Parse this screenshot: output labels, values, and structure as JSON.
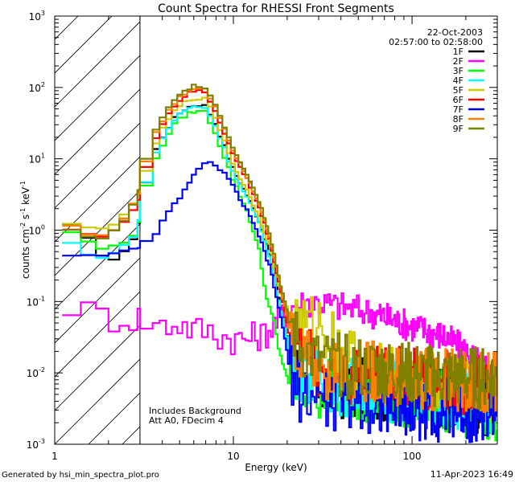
{
  "chart_data": {
    "type": "line",
    "title": "Count Spectra for RHESSI Front Segments",
    "xlabel": "Energy (keV)",
    "ylabel": "counts cm",
    "ylabel_parts": {
      "base": "counts cm",
      "exp1": "-2",
      "mid1": " s",
      "exp2": "-1",
      "mid2": " keV",
      "exp3": "-1"
    },
    "x_scale": "log",
    "y_scale": "log",
    "xlim": [
      1,
      300
    ],
    "ylim": [
      0.001,
      1000
    ],
    "x_ticks": [
      {
        "value": 1,
        "label": "1"
      },
      {
        "value": 10,
        "label": "10"
      },
      {
        "value": 100,
        "label": "100"
      }
    ],
    "y_ticks": [
      {
        "value": 0.001,
        "base": "10",
        "exp": "-3"
      },
      {
        "value": 0.01,
        "base": "10",
        "exp": "-2"
      },
      {
        "value": 0.1,
        "base": "10",
        "exp": "-1"
      },
      {
        "value": 1,
        "base": "10",
        "exp": "0"
      },
      {
        "value": 10,
        "base": "10",
        "exp": "1"
      },
      {
        "value": 100,
        "base": "10",
        "exp": "2"
      },
      {
        "value": 1000,
        "base": "10",
        "exp": "3"
      }
    ],
    "excluded_region": {
      "x": [
        1,
        3
      ],
      "style": "hatched"
    },
    "date": "22-Oct-2003",
    "time_range": "02:57:00 to 02:58:00",
    "annotations": [
      "Includes Background",
      "Att A0, FDecim 4"
    ],
    "legend_position": "top-right",
    "series": [
      {
        "name": "1F",
        "color": "#000000",
        "key": [
          [
            1.2,
            1.25
          ],
          [
            1.5,
            0.8
          ],
          [
            1.8,
            0.5
          ],
          [
            2.0,
            0.35
          ],
          [
            2.5,
            0.5
          ],
          [
            2.9,
            1.0
          ],
          [
            3.2,
            4
          ],
          [
            3.6,
            12
          ],
          [
            4.2,
            25
          ],
          [
            4.8,
            40
          ],
          [
            5.5,
            52
          ],
          [
            6.2,
            58
          ],
          [
            7.0,
            55
          ],
          [
            8.0,
            30
          ],
          [
            9.0,
            14
          ],
          [
            10,
            7
          ],
          [
            12,
            3
          ],
          [
            14,
            1.3
          ],
          [
            16,
            0.45
          ],
          [
            18,
            0.11
          ],
          [
            20,
            0.03
          ],
          [
            23,
            0.012
          ],
          [
            28,
            0.008
          ],
          [
            35,
            0.006
          ],
          [
            50,
            0.006
          ],
          [
            80,
            0.006
          ],
          [
            120,
            0.005
          ],
          [
            200,
            0.004
          ],
          [
            300,
            0.0035
          ]
        ]
      },
      {
        "name": "2F",
        "color": "#ff00ff",
        "key": [
          [
            1.2,
            0.1
          ],
          [
            1.5,
            0.07
          ],
          [
            2,
            0.06
          ],
          [
            3,
            0.06
          ],
          [
            4,
            0.045
          ],
          [
            5,
            0.05
          ],
          [
            6,
            0.04
          ],
          [
            7,
            0.04
          ],
          [
            8,
            0.035
          ],
          [
            10,
            0.03
          ],
          [
            12,
            0.03
          ],
          [
            15,
            0.035
          ],
          [
            18,
            0.055
          ],
          [
            22,
            0.09
          ],
          [
            28,
            0.1
          ],
          [
            40,
            0.085
          ],
          [
            60,
            0.07
          ],
          [
            100,
            0.045
          ],
          [
            150,
            0.033
          ],
          [
            200,
            0.02
          ],
          [
            250,
            0.012
          ],
          [
            300,
            0.008
          ]
        ]
      },
      {
        "name": "3F",
        "color": "#00ff00",
        "key": [
          [
            1.2,
            1.0
          ],
          [
            1.5,
            0.7
          ],
          [
            1.8,
            0.55
          ],
          [
            2.2,
            0.6
          ],
          [
            2.6,
            0.7
          ],
          [
            2.9,
            1.1
          ],
          [
            3.2,
            3.5
          ],
          [
            3.6,
            9
          ],
          [
            4.2,
            20
          ],
          [
            4.8,
            33
          ],
          [
            5.5,
            42
          ],
          [
            6.2,
            47
          ],
          [
            7.0,
            45
          ],
          [
            8.0,
            22
          ],
          [
            9.0,
            10
          ],
          [
            10,
            5
          ],
          [
            12,
            1.8
          ],
          [
            14,
            0.5
          ],
          [
            15,
            0.15
          ],
          [
            16,
            0.08
          ],
          [
            17,
            0.05
          ],
          [
            18,
            0.02
          ],
          [
            20,
            0.009
          ],
          [
            25,
            0.006
          ],
          [
            40,
            0.006
          ],
          [
            80,
            0.005
          ],
          [
            150,
            0.004
          ],
          [
            300,
            0.003
          ]
        ]
      },
      {
        "name": "4F",
        "color": "#00ffff",
        "key": [
          [
            1.2,
            0.7
          ],
          [
            1.5,
            0.45
          ],
          [
            1.8,
            0.42
          ],
          [
            2.2,
            0.5
          ],
          [
            2.6,
            0.65
          ],
          [
            2.9,
            1.1
          ],
          [
            3.2,
            4
          ],
          [
            3.6,
            11
          ],
          [
            4.2,
            24
          ],
          [
            4.8,
            38
          ],
          [
            5.5,
            50
          ],
          [
            6.2,
            55
          ],
          [
            7.0,
            52
          ],
          [
            8.0,
            28
          ],
          [
            9.0,
            13
          ],
          [
            10,
            6.5
          ],
          [
            12,
            2.8
          ],
          [
            14,
            1.2
          ],
          [
            16,
            0.4
          ],
          [
            18,
            0.1
          ],
          [
            20,
            0.03
          ],
          [
            23,
            0.012
          ],
          [
            30,
            0.008
          ],
          [
            60,
            0.006
          ],
          [
            120,
            0.005
          ],
          [
            300,
            0.004
          ]
        ]
      },
      {
        "name": "5F",
        "color": "#cccc00",
        "key": [
          [
            1.2,
            1.2
          ],
          [
            1.5,
            1.1
          ],
          [
            1.8,
            1.0
          ],
          [
            2.2,
            1.3
          ],
          [
            2.6,
            2.0
          ],
          [
            2.9,
            2.5
          ],
          [
            3.2,
            6
          ],
          [
            3.6,
            15
          ],
          [
            4.2,
            32
          ],
          [
            4.8,
            50
          ],
          [
            5.5,
            65
          ],
          [
            6.2,
            72
          ],
          [
            7.0,
            68
          ],
          [
            8.0,
            36
          ],
          [
            9.0,
            17
          ],
          [
            10,
            8
          ],
          [
            12,
            3.5
          ],
          [
            14,
            1.5
          ],
          [
            16,
            0.6
          ],
          [
            18,
            0.15
          ],
          [
            20,
            0.08
          ],
          [
            25,
            0.04
          ],
          [
            30,
            0.05
          ],
          [
            35,
            0.035
          ],
          [
            40,
            0.02
          ],
          [
            60,
            0.01
          ],
          [
            100,
            0.008
          ],
          [
            200,
            0.006
          ],
          [
            300,
            0.005
          ]
        ]
      },
      {
        "name": "6F",
        "color": "#ff0000",
        "key": [
          [
            1.2,
            1.1
          ],
          [
            1.5,
            0.9
          ],
          [
            1.8,
            0.8
          ],
          [
            2.2,
            1.0
          ],
          [
            2.6,
            1.5
          ],
          [
            2.9,
            2.2
          ],
          [
            3.2,
            7
          ],
          [
            3.6,
            18
          ],
          [
            4.2,
            38
          ],
          [
            4.8,
            60
          ],
          [
            5.5,
            80
          ],
          [
            6.2,
            90
          ],
          [
            7.0,
            85
          ],
          [
            8.0,
            45
          ],
          [
            9.0,
            22
          ],
          [
            10,
            11
          ],
          [
            12,
            5
          ],
          [
            14,
            2
          ],
          [
            16,
            0.7
          ],
          [
            18,
            0.18
          ],
          [
            20,
            0.05
          ],
          [
            23,
            0.02
          ],
          [
            30,
            0.012
          ],
          [
            50,
            0.01
          ],
          [
            100,
            0.008
          ],
          [
            200,
            0.007
          ],
          [
            300,
            0.006
          ]
        ]
      },
      {
        "name": "7F",
        "color": "#0000ff",
        "key": [
          [
            1.2,
            0.45
          ],
          [
            1.5,
            0.45
          ],
          [
            2.0,
            0.47
          ],
          [
            2.5,
            0.5
          ],
          [
            3.0,
            0.55
          ],
          [
            3.3,
            0.7
          ],
          [
            3.8,
            1.0
          ],
          [
            4.2,
            1.6
          ],
          [
            4.8,
            2.5
          ],
          [
            5.5,
            4
          ],
          [
            6.2,
            6.5
          ],
          [
            7.0,
            9.5
          ],
          [
            8.0,
            8
          ],
          [
            9.0,
            6
          ],
          [
            10,
            4
          ],
          [
            12,
            1.8
          ],
          [
            14,
            0.8
          ],
          [
            16,
            0.3
          ],
          [
            18,
            0.08
          ],
          [
            20,
            0.02
          ],
          [
            22,
            0.007
          ],
          [
            25,
            0.005
          ],
          [
            35,
            0.004
          ],
          [
            60,
            0.004
          ],
          [
            120,
            0.003
          ],
          [
            300,
            0.003
          ]
        ]
      },
      {
        "name": "8F",
        "color": "#ff8000",
        "key": [
          [
            1.2,
            1.2
          ],
          [
            1.5,
            0.9
          ],
          [
            1.8,
            0.8
          ],
          [
            2.2,
            1.1
          ],
          [
            2.6,
            1.8
          ],
          [
            2.9,
            2.8
          ],
          [
            3.2,
            8
          ],
          [
            3.6,
            20
          ],
          [
            4.2,
            42
          ],
          [
            4.8,
            65
          ],
          [
            5.5,
            88
          ],
          [
            6.2,
            100
          ],
          [
            7.0,
            95
          ],
          [
            8.0,
            52
          ],
          [
            9.0,
            25
          ],
          [
            10,
            13
          ],
          [
            12,
            5.5
          ],
          [
            14,
            2.3
          ],
          [
            16,
            0.8
          ],
          [
            18,
            0.2
          ],
          [
            20,
            0.06
          ],
          [
            23,
            0.02
          ],
          [
            30,
            0.012
          ],
          [
            60,
            0.01
          ],
          [
            120,
            0.008
          ],
          [
            300,
            0.007
          ]
        ]
      },
      {
        "name": "9F",
        "color": "#808000",
        "key": [
          [
            1.2,
            1.0
          ],
          [
            1.5,
            0.85
          ],
          [
            1.8,
            0.75
          ],
          [
            2.2,
            1.0
          ],
          [
            2.6,
            1.6
          ],
          [
            2.9,
            3.0
          ],
          [
            3.2,
            9
          ],
          [
            3.6,
            22
          ],
          [
            4.2,
            45
          ],
          [
            4.8,
            70
          ],
          [
            5.5,
            95
          ],
          [
            6.2,
            110
          ],
          [
            7.0,
            100
          ],
          [
            8.0,
            55
          ],
          [
            9.0,
            27
          ],
          [
            10,
            14
          ],
          [
            12,
            6
          ],
          [
            14,
            2.5
          ],
          [
            16,
            0.9
          ],
          [
            18,
            0.22
          ],
          [
            20,
            0.07
          ],
          [
            23,
            0.025
          ],
          [
            30,
            0.014
          ],
          [
            60,
            0.011
          ],
          [
            120,
            0.009
          ],
          [
            300,
            0.008
          ]
        ]
      }
    ]
  },
  "footer": {
    "generated": "Generated by hsi_min_spectra_plot.pro",
    "timestamp": "11-Apr-2023 16:49"
  }
}
